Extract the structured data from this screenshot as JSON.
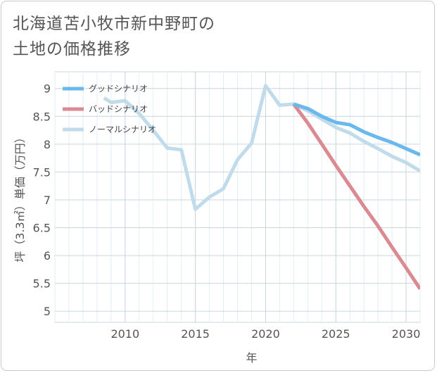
{
  "title_lines": [
    "北海道苫小牧市新中野町の",
    "土地の価格推移"
  ],
  "chart_data": {
    "type": "line",
    "xlabel": "年",
    "ylabel": "坪（3.3㎡）単価（万円）",
    "xlim": [
      2005,
      2031
    ],
    "ylim": [
      4.8,
      9.3
    ],
    "x_ticks": [
      2010,
      2015,
      2020,
      2025,
      2030
    ],
    "y_ticks": [
      5,
      5.5,
      6,
      6.5,
      7,
      7.5,
      8,
      8.5,
      9
    ],
    "legend_position": "top-left",
    "grid": true,
    "series": [
      {
        "name": "ノーマルシナリオ",
        "color": "#c0dcea",
        "points": [
          [
            2008.5,
            8.83
          ],
          [
            2009,
            8.75
          ],
          [
            2010,
            8.78
          ],
          [
            2011,
            8.55
          ],
          [
            2012,
            8.25
          ],
          [
            2013,
            7.93
          ],
          [
            2014,
            7.9
          ],
          [
            2015,
            6.83
          ],
          [
            2016,
            7.05
          ],
          [
            2017,
            7.2
          ],
          [
            2018,
            7.72
          ],
          [
            2019,
            8.02
          ],
          [
            2020,
            9.05
          ],
          [
            2021,
            8.7
          ],
          [
            2022,
            8.72
          ],
          [
            2023,
            8.6
          ],
          [
            2024,
            8.45
          ],
          [
            2025,
            8.3
          ],
          [
            2026,
            8.2
          ],
          [
            2027,
            8.05
          ],
          [
            2028,
            7.92
          ],
          [
            2029,
            7.78
          ],
          [
            2030,
            7.67
          ],
          [
            2031,
            7.52
          ]
        ]
      },
      {
        "name": "バッドシナリオ",
        "color": "#dc8a92",
        "points": [
          [
            2022,
            8.72
          ],
          [
            2023,
            8.38
          ],
          [
            2024,
            8.0
          ],
          [
            2025,
            7.62
          ],
          [
            2026,
            7.25
          ],
          [
            2027,
            6.88
          ],
          [
            2028,
            6.53
          ],
          [
            2029,
            6.15
          ],
          [
            2030,
            5.78
          ],
          [
            2031,
            5.4
          ]
        ]
      },
      {
        "name": "グッドシナリオ",
        "color": "#6bb8ec",
        "points": [
          [
            2022,
            8.72
          ],
          [
            2023,
            8.64
          ],
          [
            2024,
            8.5
          ],
          [
            2025,
            8.39
          ],
          [
            2026,
            8.35
          ],
          [
            2027,
            8.22
          ],
          [
            2028,
            8.12
          ],
          [
            2029,
            8.03
          ],
          [
            2030,
            7.92
          ],
          [
            2031,
            7.81
          ]
        ]
      }
    ],
    "legend_order": [
      "グッドシナリオ",
      "バッドシナリオ",
      "ノーマルシナリオ"
    ]
  }
}
